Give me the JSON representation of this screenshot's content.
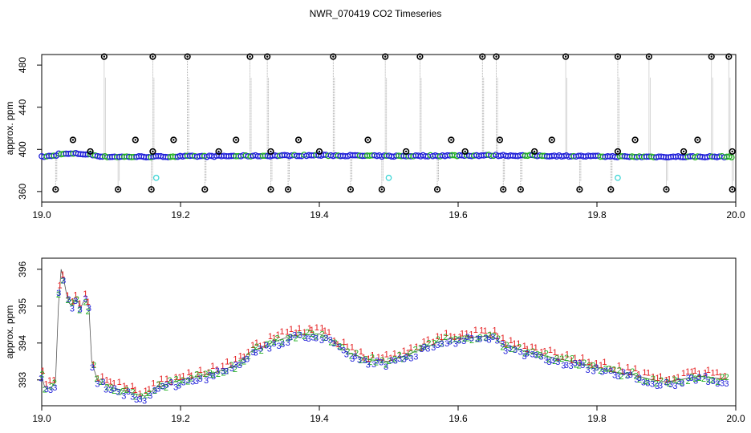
{
  "title": "NWR_070419  CO2 Timeseries",
  "colors": {
    "series1": "#e41a1c",
    "series2": "#22b022",
    "series3": "#1f1fd8",
    "outlier": "#000000",
    "cyan": "#3fd6d6",
    "trace": "#9a9a9a"
  },
  "chart_data": [
    {
      "type": "scatter",
      "name": "top-panel",
      "ylabel": "approx. ppm",
      "xlabel": "",
      "xlim": [
        19.0,
        20.0
      ],
      "ylim": [
        350,
        490
      ],
      "xticks": [
        "19.0",
        "19.2",
        "19.4",
        "19.6",
        "19.8",
        "20.0"
      ],
      "yticks": [
        "360",
        "400",
        "440",
        "480"
      ],
      "baseline": [
        [
          19.0,
          393
        ],
        [
          19.02,
          394
        ],
        [
          19.025,
          396
        ],
        [
          19.035,
          395.6
        ],
        [
          19.05,
          396
        ],
        [
          19.07,
          395
        ],
        [
          19.09,
          393
        ],
        [
          19.15,
          393
        ],
        [
          19.2,
          393.3
        ],
        [
          19.3,
          393.8
        ],
        [
          19.4,
          394.4
        ],
        [
          19.5,
          393.6
        ],
        [
          19.6,
          394.2
        ],
        [
          19.65,
          394.3
        ],
        [
          19.75,
          393.8
        ],
        [
          19.85,
          393
        ],
        [
          19.95,
          393
        ],
        [
          19.99,
          393
        ]
      ],
      "outliers_high": [
        19.09,
        19.16,
        19.21,
        19.3,
        19.325,
        19.42,
        19.495,
        19.545,
        19.635,
        19.655,
        19.755,
        19.83,
        19.875,
        19.965,
        19.99
      ],
      "outliers_mid": [
        19.045,
        19.07,
        19.135,
        19.16,
        19.19,
        19.255,
        19.28,
        19.33,
        19.37,
        19.4,
        19.47,
        19.525,
        19.59,
        19.61,
        19.66,
        19.71,
        19.735,
        19.83,
        19.855,
        19.925,
        19.945,
        19.995
      ],
      "outliers_low": [
        19.02,
        19.11,
        19.158,
        19.235,
        19.33,
        19.355,
        19.445,
        19.49,
        19.57,
        19.665,
        19.69,
        19.775,
        19.82,
        19.9,
        19.995
      ],
      "outlier_values": {
        "high": 488,
        "mid_high": 409,
        "mid_low": 398,
        "low": 362
      },
      "cyan_points": [
        [
          19.165,
          373
        ],
        [
          19.5,
          373
        ],
        [
          19.83,
          373
        ]
      ]
    },
    {
      "type": "scatter",
      "name": "bottom-panel",
      "ylabel": "approx. ppm",
      "xlabel": "",
      "xlim": [
        19.0,
        20.0
      ],
      "ylim": [
        392.3,
        396.3
      ],
      "xticks": [
        "19.0",
        "19.2",
        "19.4",
        "19.6",
        "19.8",
        "20.0"
      ],
      "yticks": [
        "393",
        "394",
        "395",
        "396"
      ],
      "series": [
        {
          "name": "1",
          "marker": "1"
        },
        {
          "name": "2",
          "marker": "2"
        },
        {
          "name": "3",
          "marker": "3"
        }
      ],
      "profile": [
        [
          19.0,
          393.1
        ],
        [
          19.005,
          392.75
        ],
        [
          19.015,
          392.8
        ],
        [
          19.02,
          393.0
        ],
        [
          19.025,
          395.5
        ],
        [
          19.028,
          396.0
        ],
        [
          19.032,
          395.7
        ],
        [
          19.038,
          395.1
        ],
        [
          19.045,
          395.0
        ],
        [
          19.05,
          395.3
        ],
        [
          19.055,
          394.9
        ],
        [
          19.062,
          395.2
        ],
        [
          19.068,
          395.0
        ],
        [
          19.072,
          393.5
        ],
        [
          19.08,
          393.0
        ],
        [
          19.1,
          392.8
        ],
        [
          19.12,
          392.7
        ],
        [
          19.14,
          392.6
        ],
        [
          19.15,
          392.55
        ],
        [
          19.165,
          392.8
        ],
        [
          19.2,
          393.0
        ],
        [
          19.25,
          393.2
        ],
        [
          19.28,
          393.4
        ],
        [
          19.3,
          393.75
        ],
        [
          19.33,
          394.0
        ],
        [
          19.36,
          394.2
        ],
        [
          19.4,
          394.25
        ],
        [
          19.42,
          394.05
        ],
        [
          19.44,
          393.75
        ],
        [
          19.47,
          393.55
        ],
        [
          19.5,
          393.5
        ],
        [
          19.55,
          393.85
        ],
        [
          19.58,
          394.1
        ],
        [
          19.62,
          394.15
        ],
        [
          19.65,
          394.2
        ],
        [
          19.66,
          394.0
        ],
        [
          19.7,
          393.75
        ],
        [
          19.75,
          393.55
        ],
        [
          19.8,
          393.35
        ],
        [
          19.83,
          393.2
        ],
        [
          19.85,
          393.15
        ],
        [
          19.88,
          393.0
        ],
        [
          19.9,
          392.95
        ],
        [
          19.95,
          393.1
        ],
        [
          19.99,
          393.0
        ]
      ]
    }
  ]
}
